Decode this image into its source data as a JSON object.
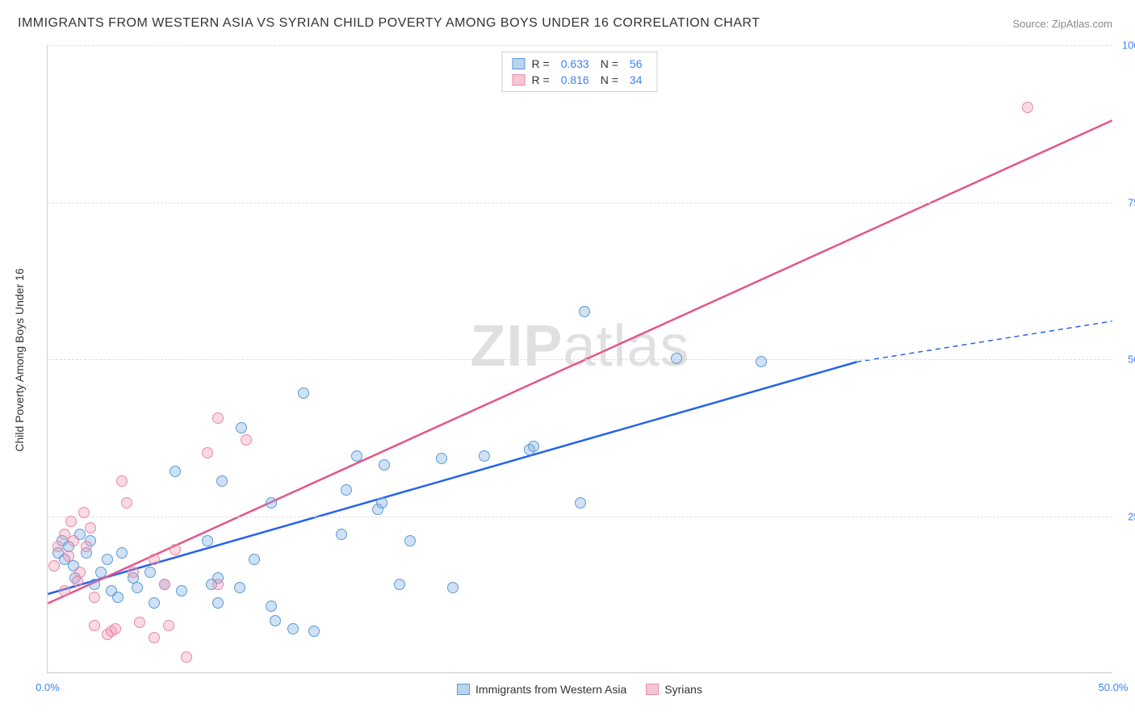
{
  "title": "IMMIGRANTS FROM WESTERN ASIA VS SYRIAN CHILD POVERTY AMONG BOYS UNDER 16 CORRELATION CHART",
  "source": "Source: ZipAtlas.com",
  "watermark_prefix": "ZIP",
  "watermark_suffix": "atlas",
  "chart": {
    "type": "scatter",
    "background_color": "#ffffff",
    "grid_color": "#dddddd",
    "axis_color": "#cccccc",
    "tick_color": "#3b82f6",
    "xlim": [
      0,
      50
    ],
    "ylim": [
      0,
      100
    ],
    "xticks": [
      {
        "v": 0,
        "label": "0.0%"
      },
      {
        "v": 50,
        "label": "50.0%"
      }
    ],
    "yticks": [
      {
        "v": 25,
        "label": "25.0%"
      },
      {
        "v": 50,
        "label": "50.0%"
      },
      {
        "v": 75,
        "label": "75.0%"
      },
      {
        "v": 100,
        "label": "100.0%"
      }
    ],
    "ylabel": "Child Poverty Among Boys Under 16",
    "legend_top": [
      {
        "swatch_fill": "#b9d3f0",
        "swatch_border": "#5b9bd5",
        "R": "0.633",
        "N": "56"
      },
      {
        "swatch_fill": "#f5c6d3",
        "swatch_border": "#e78aa5",
        "R": "0.816",
        "N": "34"
      }
    ],
    "legend_bottom": [
      {
        "swatch_fill": "#b9d3f0",
        "swatch_border": "#5b9bd5",
        "label": "Immigrants from Western Asia"
      },
      {
        "swatch_fill": "#f5c6d3",
        "swatch_border": "#e78aa5",
        "label": "Syrians"
      }
    ],
    "series": [
      {
        "name": "blue",
        "fill": "rgba(120,170,225,0.35)",
        "stroke": "#5b9bd5",
        "radius": 7,
        "trend": {
          "color": "#2563eb",
          "x1": 0,
          "y1": 12.5,
          "x2": 38,
          "y2": 49.5,
          "dash_x2": 50,
          "dash_y2": 56
        },
        "points": [
          [
            0.5,
            19
          ],
          [
            0.7,
            21
          ],
          [
            0.8,
            18
          ],
          [
            1,
            20
          ],
          [
            1.2,
            17
          ],
          [
            1.5,
            22
          ],
          [
            1.3,
            15
          ],
          [
            1.8,
            19
          ],
          [
            2,
            21
          ],
          [
            2.2,
            14
          ],
          [
            2.5,
            16
          ],
          [
            2.8,
            18
          ],
          [
            3,
            13
          ],
          [
            3.5,
            19
          ],
          [
            3.3,
            12
          ],
          [
            4,
            15
          ],
          [
            4.2,
            13.5
          ],
          [
            4.8,
            16
          ],
          [
            5,
            11
          ],
          [
            5.5,
            14
          ],
          [
            6.3,
            13
          ],
          [
            6,
            32
          ],
          [
            7.5,
            21
          ],
          [
            7.7,
            14
          ],
          [
            8,
            11
          ],
          [
            8,
            15
          ],
          [
            8.2,
            30.5
          ],
          [
            9,
            13.5
          ],
          [
            9.1,
            39
          ],
          [
            10.5,
            10.5
          ],
          [
            9.7,
            18
          ],
          [
            10.5,
            27
          ],
          [
            11.5,
            7
          ],
          [
            10.7,
            8.2
          ],
          [
            12,
            44.5
          ],
          [
            12.5,
            6.5
          ],
          [
            13.8,
            22
          ],
          [
            14,
            29
          ],
          [
            15.5,
            26
          ],
          [
            15.7,
            27
          ],
          [
            15.8,
            33
          ],
          [
            14.5,
            34.5
          ],
          [
            16.5,
            14
          ],
          [
            17,
            21
          ],
          [
            18.5,
            34
          ],
          [
            19,
            13.5
          ],
          [
            20.5,
            34.5
          ],
          [
            22.6,
            35.5
          ],
          [
            22.8,
            36
          ],
          [
            25,
            27
          ],
          [
            25.2,
            57.5
          ],
          [
            29.5,
            50
          ],
          [
            33.5,
            49.5
          ]
        ]
      },
      {
        "name": "pink",
        "fill": "rgba(240,150,175,0.35)",
        "stroke": "#e78aa5",
        "radius": 7,
        "trend": {
          "color": "#e5548a",
          "x1": 0,
          "y1": 11,
          "x2": 50,
          "y2": 88
        },
        "points": [
          [
            0.3,
            17
          ],
          [
            0.5,
            20
          ],
          [
            0.8,
            22
          ],
          [
            1,
            18.5
          ],
          [
            1.2,
            21
          ],
          [
            1.5,
            16
          ],
          [
            1.1,
            24
          ],
          [
            1.7,
            25.5
          ],
          [
            2,
            23
          ],
          [
            1.8,
            20
          ],
          [
            0.8,
            13
          ],
          [
            1.4,
            14.5
          ],
          [
            2.2,
            12
          ],
          [
            2.2,
            7.5
          ],
          [
            2.8,
            6
          ],
          [
            3,
            6.5
          ],
          [
            3.2,
            7
          ],
          [
            3.5,
            30.5
          ],
          [
            3.7,
            27
          ],
          [
            4,
            16
          ],
          [
            4.3,
            8
          ],
          [
            5,
            18
          ],
          [
            5,
            5.5
          ],
          [
            5.5,
            14
          ],
          [
            5.7,
            7.5
          ],
          [
            6,
            19.5
          ],
          [
            6.5,
            2.5
          ],
          [
            7.5,
            35
          ],
          [
            8,
            40.5
          ],
          [
            8,
            14
          ],
          [
            9.3,
            37
          ],
          [
            46,
            90
          ]
        ]
      }
    ]
  }
}
